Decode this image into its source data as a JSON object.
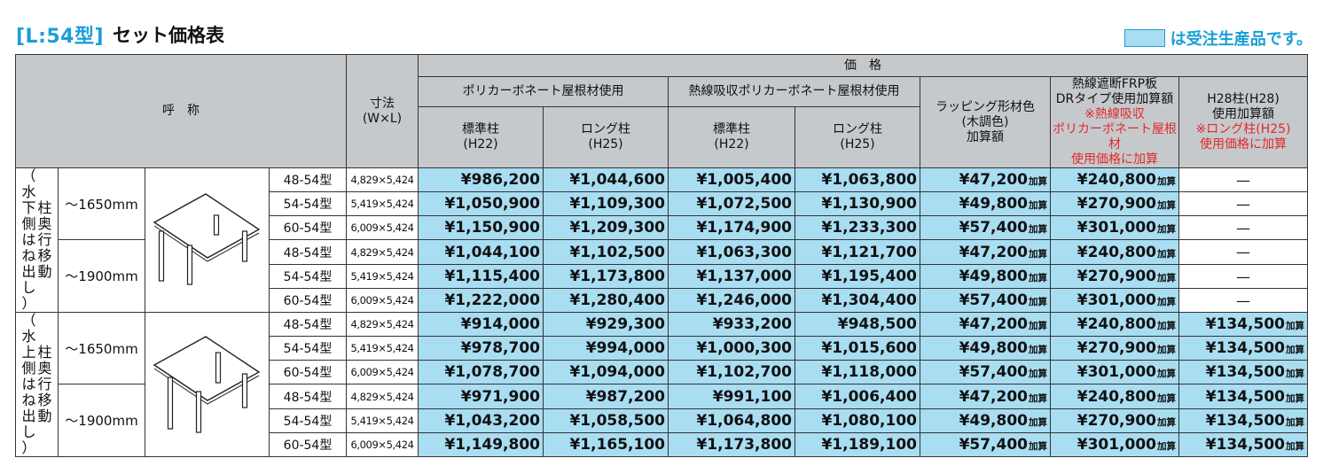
{
  "title": {
    "model_tag": "[L:54型]",
    "text": "セット価格表"
  },
  "legend": {
    "swatch_color": "#a9ddf2",
    "text": "は受注生産品です。"
  },
  "header": {
    "name_label": "呼　称",
    "dimension_label_1": "寸法",
    "dimension_label_2": "(W×L)",
    "price_label": "価　格",
    "polycarbonate_label": "ポリカーボネート屋根材使用",
    "heat_absorb_label": "熱線吸収ポリカーボネート屋根材使用",
    "standard_post_1": "標準柱",
    "standard_post_2": "(H22)",
    "long_post_1": "ロング柱",
    "long_post_2": "(H25)",
    "wrapping_1": "ラッピング形材色",
    "wrapping_2": "(木調色)",
    "wrapping_3": "加算額",
    "frp_1": "熱線遮断FRP板",
    "frp_2": "DRタイプ使用加算額",
    "frp_note_1": "※熱線吸収",
    "frp_note_2": "ポリカーボネート屋根材",
    "frp_note_3": "使用価格に加算",
    "h28_1": "H28柱(H28)",
    "h28_2": "使用加算額",
    "h28_note_1": "※ロング柱(H25)",
    "h28_note_2": "使用価格に加算"
  },
  "add_suffix": "加算",
  "dash": "—",
  "groups": [
    {
      "label_chars": [
        "柱",
        "奥",
        "行",
        "移",
        "動"
      ],
      "paren_chars": [
        "（",
        "水",
        "下",
        "側",
        "は",
        "ね",
        "出",
        "し",
        "）"
      ],
      "post_side": "low",
      "ranges": [
        {
          "label": "～1650mm",
          "rows": [
            {
              "type": "48-54型",
              "dim": "4,829×5,424",
              "p1": "¥986,200",
              "p2": "¥1,044,600",
              "p3": "¥1,005,400",
              "p4": "¥1,063,800",
              "wrap": "¥47,200",
              "frp": "¥240,800",
              "h28": ""
            },
            {
              "type": "54-54型",
              "dim": "5,419×5,424",
              "p1": "¥1,050,900",
              "p2": "¥1,109,300",
              "p3": "¥1,072,500",
              "p4": "¥1,130,900",
              "wrap": "¥49,800",
              "frp": "¥270,900",
              "h28": ""
            },
            {
              "type": "60-54型",
              "dim": "6,009×5,424",
              "p1": "¥1,150,900",
              "p2": "¥1,209,300",
              "p3": "¥1,174,900",
              "p4": "¥1,233,300",
              "wrap": "¥57,400",
              "frp": "¥301,000",
              "h28": ""
            }
          ]
        },
        {
          "label": "～1900mm",
          "rows": [
            {
              "type": "48-54型",
              "dim": "4,829×5,424",
              "p1": "¥1,044,100",
              "p2": "¥1,102,500",
              "p3": "¥1,063,300",
              "p4": "¥1,121,700",
              "wrap": "¥47,200",
              "frp": "¥240,800",
              "h28": ""
            },
            {
              "type": "54-54型",
              "dim": "5,419×5,424",
              "p1": "¥1,115,400",
              "p2": "¥1,173,800",
              "p3": "¥1,137,000",
              "p4": "¥1,195,400",
              "wrap": "¥49,800",
              "frp": "¥270,900",
              "h28": ""
            },
            {
              "type": "60-54型",
              "dim": "6,009×5,424",
              "p1": "¥1,222,000",
              "p2": "¥1,280,400",
              "p3": "¥1,246,000",
              "p4": "¥1,304,400",
              "wrap": "¥57,400",
              "frp": "¥301,000",
              "h28": ""
            }
          ]
        }
      ]
    },
    {
      "label_chars": [
        "柱",
        "奥",
        "行",
        "移",
        "動"
      ],
      "paren_chars": [
        "（",
        "水",
        "上",
        "側",
        "は",
        "ね",
        "出",
        "し",
        "）"
      ],
      "post_side": "high",
      "ranges": [
        {
          "label": "～1650mm",
          "rows": [
            {
              "type": "48-54型",
              "dim": "4,829×5,424",
              "p1": "¥914,000",
              "p2": "¥929,300",
              "p3": "¥933,200",
              "p4": "¥948,500",
              "wrap": "¥47,200",
              "frp": "¥240,800",
              "h28": "¥134,500"
            },
            {
              "type": "54-54型",
              "dim": "5,419×5,424",
              "p1": "¥978,700",
              "p2": "¥994,000",
              "p3": "¥1,000,300",
              "p4": "¥1,015,600",
              "wrap": "¥49,800",
              "frp": "¥270,900",
              "h28": "¥134,500"
            },
            {
              "type": "60-54型",
              "dim": "6,009×5,424",
              "p1": "¥1,078,700",
              "p2": "¥1,094,000",
              "p3": "¥1,102,700",
              "p4": "¥1,118,000",
              "wrap": "¥57,400",
              "frp": "¥301,000",
              "h28": "¥134,500"
            }
          ]
        },
        {
          "label": "～1900mm",
          "rows": [
            {
              "type": "48-54型",
              "dim": "4,829×5,424",
              "p1": "¥971,900",
              "p2": "¥987,200",
              "p3": "¥991,100",
              "p4": "¥1,006,400",
              "wrap": "¥47,200",
              "frp": "¥240,800",
              "h28": "¥134,500"
            },
            {
              "type": "54-54型",
              "dim": "5,419×5,424",
              "p1": "¥1,043,200",
              "p2": "¥1,058,500",
              "p3": "¥1,064,800",
              "p4": "¥1,080,100",
              "wrap": "¥49,800",
              "frp": "¥270,900",
              "h28": "¥134,500"
            },
            {
              "type": "60-54型",
              "dim": "6,009×5,424",
              "p1": "¥1,149,800",
              "p2": "¥1,165,100",
              "p3": "¥1,173,800",
              "p4": "¥1,189,100",
              "wrap": "¥57,400",
              "frp": "¥301,000",
              "h28": "¥134,500"
            }
          ]
        }
      ]
    }
  ]
}
